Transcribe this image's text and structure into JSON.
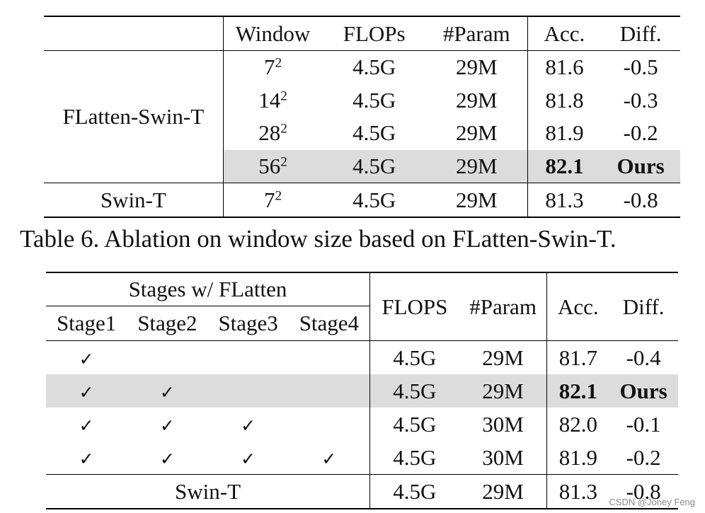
{
  "table6": {
    "headers": [
      "",
      "Window",
      "FLOPs",
      "#Param",
      "Acc.",
      "Diff."
    ],
    "group_label": "FLatten-Swin-T",
    "rows": [
      {
        "window_base": "7",
        "window_exp": "2",
        "flops": "4.5G",
        "params": "29M",
        "acc": "81.6",
        "diff": "-0.5"
      },
      {
        "window_base": "14",
        "window_exp": "2",
        "flops": "4.5G",
        "params": "29M",
        "acc": "81.8",
        "diff": "-0.3"
      },
      {
        "window_base": "28",
        "window_exp": "2",
        "flops": "4.5G",
        "params": "29M",
        "acc": "81.9",
        "diff": "-0.2"
      },
      {
        "window_base": "56",
        "window_exp": "2",
        "flops": "4.5G",
        "params": "29M",
        "acc": "82.1",
        "diff": "Ours"
      }
    ],
    "baseline": {
      "label": "Swin-T",
      "window_base": "7",
      "window_exp": "2",
      "flops": "4.5G",
      "params": "29M",
      "acc": "81.3",
      "diff": "-0.8"
    },
    "caption": "Table 6. Ablation on window size based on FLatten-Swin-T."
  },
  "table7": {
    "group_header": "Stages w/ FLatten",
    "stage_headers": [
      "Stage1",
      "Stage2",
      "Stage3",
      "Stage4"
    ],
    "headers": [
      "FLOPS",
      "#Param",
      "Acc.",
      "Diff."
    ],
    "check_mark": "✓",
    "rows": [
      {
        "flops": "4.5G",
        "params": "29M",
        "acc": "81.7",
        "diff": "-0.4"
      },
      {
        "flops": "4.5G",
        "params": "29M",
        "acc": "82.1",
        "diff": "Ours"
      },
      {
        "flops": "4.5G",
        "params": "30M",
        "acc": "82.0",
        "diff": "-0.1"
      },
      {
        "flops": "4.5G",
        "params": "30M",
        "acc": "81.9",
        "diff": "-0.2"
      }
    ],
    "baseline": {
      "label": "Swin-T",
      "flops": "4.5G",
      "params": "29M",
      "acc": "81.3",
      "diff": "-0.8"
    }
  },
  "watermark": "CSDN @Joney Feng"
}
